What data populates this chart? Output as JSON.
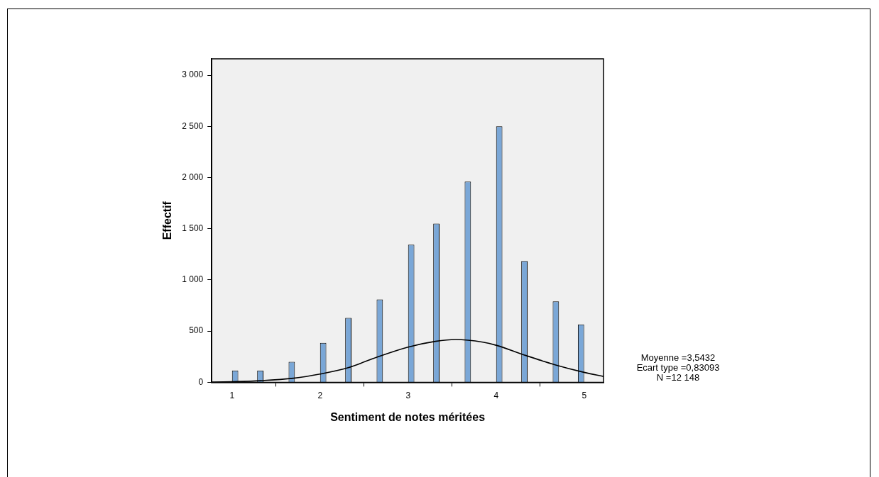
{
  "chart_data": {
    "type": "histogram",
    "xlabel": "Sentiment de notes méritées",
    "ylabel": "Effectif",
    "bins": [
      1,
      1.071,
      1.286,
      1.357,
      1.643,
      1.714,
      2,
      2.071,
      2.286,
      2.357,
      2.643,
      2.714,
      3,
      3.071,
      3.286,
      3.357,
      3.643,
      3.714,
      4,
      4.071,
      4.286,
      4.357,
      4.643,
      4.714,
      4.929,
      5
    ],
    "series": [
      {
        "color": "#7aa7d7",
        "values": [
          115,
          0,
          115,
          0,
          200,
          0,
          385,
          0,
          630,
          0,
          810,
          0,
          1345,
          0,
          1550,
          0,
          1960,
          0,
          2500,
          0,
          1185,
          0,
          790,
          0,
          565
        ]
      },
      {
        "type": "line",
        "color": "#000000",
        "x": [
          0.77,
          1,
          1.33,
          1.7,
          2,
          2.32,
          2.65,
          3,
          3.31,
          3.54,
          3.85,
          4,
          4.31,
          4.67,
          5,
          5.22
        ],
        "values": [
          2,
          6,
          16,
          40,
          81,
          143,
          247,
          344,
          400,
          418,
          392,
          362,
          270,
          171,
          97,
          57
        ]
      }
    ],
    "xlim": [
      0.77,
      5.22
    ],
    "xticks": [
      1,
      2,
      3,
      4,
      5
    ],
    "ylim": [
      0,
      3160
    ],
    "yticks": [
      0,
      500,
      {
        "value": 1000,
        "label": "1 000"
      },
      {
        "value": 1500,
        "label": "1 500"
      },
      {
        "value": 2000,
        "label": "2 000"
      },
      {
        "value": 2500,
        "label": "2 500"
      },
      {
        "value": 3000,
        "label": "3 000"
      }
    ],
    "grid": false,
    "legend": false,
    "marker": "none",
    "annotations": [
      "Moyenne =3,5432",
      "Ecart type =0,83093",
      "N =12 148"
    ]
  }
}
